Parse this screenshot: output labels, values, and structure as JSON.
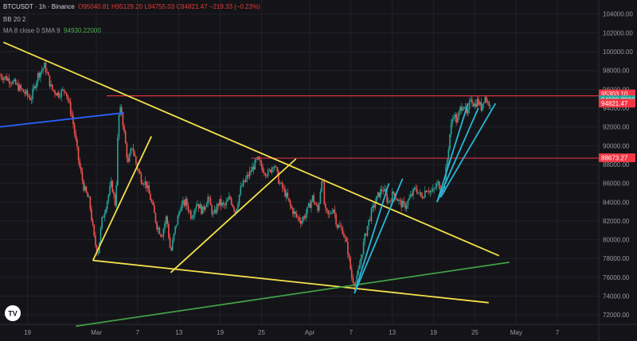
{
  "header": {
    "symbol": "BTCUSDT · 1h · Binance",
    "open": "O95040.81",
    "high": "H95129.20",
    "low": "L94755.03",
    "close": "C94821.47",
    "change": "−219.33 (−0.23%)",
    "indicator1": "BB 20 2",
    "indicator2": "MA 8 close 0 SMA 9",
    "indicator2_value": "94930.22000"
  },
  "colors": {
    "background": "#141418",
    "up": "#26a69a",
    "down": "#ef5350",
    "yellow": "#f5e14a",
    "red_line": "#f23645",
    "cyan": "#29b6d6",
    "blue": "#2962ff",
    "green": "#43a047"
  },
  "price_tags": [
    {
      "text": "95303.10",
      "value": 95303.1,
      "color": "#f23645"
    },
    {
      "text": "94930.2200",
      "value": 94930.22,
      "color": "#26a69a"
    },
    {
      "text": "94821.47",
      "value": 94821.47,
      "color": "#f23645"
    },
    {
      "text": "88673.27",
      "value": 88673.27,
      "color": "#f23645"
    }
  ],
  "chart_data": {
    "type": "line",
    "title": "BTCUSDT · 1h · Binance",
    "ylim": [
      71000,
      105500
    ],
    "y_ticks": [
      72000,
      74000,
      76000,
      78000,
      80000,
      82000,
      84000,
      86000,
      88000,
      90000,
      92000,
      94000,
      96000,
      98000,
      100000,
      102000,
      104000
    ],
    "y_tick_labels": [
      "72000.00",
      "74000.00",
      "76000.00",
      "78000.00",
      "80000.00",
      "82000.00",
      "84000.00",
      "86000.00",
      "88000.00",
      "90000.00",
      "92000.00",
      "94000.00",
      "96000.00",
      "98000.00",
      "100000.00",
      "102000.00",
      "104000.00"
    ],
    "x_ticks": [
      {
        "label": "19",
        "day": -10
      },
      {
        "label": "Mar",
        "day": 0
      },
      {
        "label": "7",
        "day": 6
      },
      {
        "label": "13",
        "day": 12
      },
      {
        "label": "19",
        "day": 18
      },
      {
        "label": "25",
        "day": 24
      },
      {
        "label": "Apr",
        "day": 31
      },
      {
        "label": "7",
        "day": 37
      },
      {
        "label": "13",
        "day": 43
      },
      {
        "label": "19",
        "day": 49
      },
      {
        "label": "25",
        "day": 55
      },
      {
        "label": "May",
        "day": 61
      },
      {
        "label": "7",
        "day": 67
      }
    ],
    "x_range_days": [
      -14,
      73
    ],
    "price_path": [
      [
        -14,
        97500
      ],
      [
        -12.5,
        97000
      ],
      [
        -11,
        96000
      ],
      [
        -9.5,
        95000
      ],
      [
        -8.5,
        97500
      ],
      [
        -7.5,
        98500
      ],
      [
        -6.5,
        96000
      ],
      [
        -5.5,
        95500
      ],
      [
        -4.5,
        96000
      ],
      [
        -3.5,
        93000
      ],
      [
        -2.5,
        88000
      ],
      [
        -1.8,
        85500
      ],
      [
        -1,
        84000
      ],
      [
        -0.3,
        80000
      ],
      [
        0.2,
        78500
      ],
      [
        0.8,
        82000
      ],
      [
        1.5,
        84000
      ],
      [
        2.2,
        86000
      ],
      [
        2.8,
        83500
      ],
      [
        3.2,
        93000
      ],
      [
        3.6,
        94000
      ],
      [
        4.1,
        91000
      ],
      [
        4.6,
        88000
      ],
      [
        5.2,
        90000
      ],
      [
        5.8,
        88000
      ],
      [
        6.5,
        86500
      ],
      [
        7.2,
        86000
      ],
      [
        8,
        84000
      ],
      [
        8.8,
        81500
      ],
      [
        9.5,
        80500
      ],
      [
        10.2,
        82500
      ],
      [
        10.8,
        78500
      ],
      [
        11.4,
        81000
      ],
      [
        12.2,
        83500
      ],
      [
        13,
        84000
      ],
      [
        13.8,
        82500
      ],
      [
        14.6,
        84000
      ],
      [
        15.4,
        83000
      ],
      [
        16.2,
        84500
      ],
      [
        17,
        82500
      ],
      [
        17.8,
        84000
      ],
      [
        18.6,
        83500
      ],
      [
        19.4,
        84500
      ],
      [
        20.2,
        83000
      ],
      [
        21,
        85500
      ],
      [
        21.8,
        86500
      ],
      [
        22.6,
        87500
      ],
      [
        23.4,
        88500
      ],
      [
        24.2,
        87500
      ],
      [
        25,
        87000
      ],
      [
        25.8,
        88200
      ],
      [
        26.6,
        86000
      ],
      [
        27.4,
        85000
      ],
      [
        28.2,
        83500
      ],
      [
        29,
        82500
      ],
      [
        29.8,
        82000
      ],
      [
        30.6,
        83000
      ],
      [
        31.4,
        84500
      ],
      [
        32.2,
        83000
      ],
      [
        32.8,
        87000
      ],
      [
        33.2,
        83000
      ],
      [
        33.8,
        82500
      ],
      [
        34.4,
        83500
      ],
      [
        35,
        81500
      ],
      [
        35.8,
        81000
      ],
      [
        36.5,
        79000
      ],
      [
        37.1,
        76000
      ],
      [
        37.7,
        75200
      ],
      [
        38.3,
        77500
      ],
      [
        38.8,
        79500
      ],
      [
        39.4,
        81500
      ],
      [
        40,
        83000
      ],
      [
        40.8,
        84500
      ],
      [
        41.6,
        85500
      ],
      [
        42.4,
        84000
      ],
      [
        43.2,
        85000
      ],
      [
        44,
        84000
      ],
      [
        44.8,
        83500
      ],
      [
        45.6,
        84500
      ],
      [
        46.4,
        85500
      ],
      [
        47.2,
        84500
      ],
      [
        48,
        85500
      ],
      [
        48.8,
        85000
      ],
      [
        49.6,
        86000
      ],
      [
        50.4,
        85200
      ],
      [
        50.9,
        88000
      ],
      [
        51.4,
        91500
      ],
      [
        51.9,
        93500
      ],
      [
        52.4,
        92500
      ],
      [
        52.9,
        94000
      ],
      [
        53.4,
        94500
      ],
      [
        53.9,
        93000
      ],
      [
        54.4,
        95200
      ],
      [
        54.9,
        94300
      ],
      [
        55.4,
        94800
      ],
      [
        55.9,
        94000
      ],
      [
        56.4,
        95300
      ],
      [
        56.9,
        94500
      ],
      [
        57.4,
        94800
      ]
    ],
    "lines": [
      {
        "name": "resistance-95303",
        "color": "#f23645",
        "points": [
          [
            1.5,
            95303.1
          ],
          [
            73,
            95303.1
          ]
        ]
      },
      {
        "name": "resistance-88673",
        "color": "#f23645",
        "points": [
          [
            22.5,
            88673.27
          ],
          [
            73,
            88673.27
          ]
        ]
      },
      {
        "name": "downtrend",
        "color": "#f5e14a",
        "points": [
          [
            -13.5,
            101000
          ],
          [
            58.5,
            78300
          ]
        ]
      },
      {
        "name": "lower-wedge",
        "color": "#f5e14a",
        "points": [
          [
            -0.5,
            77800
          ],
          [
            57,
            73300
          ]
        ]
      },
      {
        "name": "channel-1",
        "color": "#f5e14a",
        "points": [
          [
            -0.5,
            77800
          ],
          [
            8,
            91000
          ]
        ]
      },
      {
        "name": "channel-2",
        "color": "#f5e14a",
        "points": [
          [
            10.8,
            76500
          ],
          [
            29,
            88600
          ]
        ]
      },
      {
        "name": "blue-trend",
        "color": "#2962ff",
        "points": [
          [
            -14,
            92000
          ],
          [
            4,
            93500
          ]
        ]
      },
      {
        "name": "green-trend",
        "color": "#43a047",
        "points": [
          [
            -3,
            70800
          ],
          [
            60,
            77600
          ]
        ]
      },
      {
        "name": "cyan-1",
        "color": "#29b6d6",
        "points": [
          [
            37.5,
            74300
          ],
          [
            42.5,
            86000
          ]
        ]
      },
      {
        "name": "cyan-2",
        "color": "#29b6d6",
        "points": [
          [
            37.5,
            74300
          ],
          [
            44.5,
            86500
          ]
        ]
      },
      {
        "name": "cyan-3",
        "color": "#29b6d6",
        "points": [
          [
            49.5,
            84000
          ],
          [
            54,
            94500
          ]
        ]
      },
      {
        "name": "cyan-4",
        "color": "#29b6d6",
        "points": [
          [
            49.5,
            84000
          ],
          [
            55.5,
            94000
          ]
        ]
      },
      {
        "name": "cyan-5",
        "color": "#29b6d6",
        "points": [
          [
            50,
            84500
          ],
          [
            58,
            94500
          ]
        ]
      }
    ],
    "grid": true,
    "legend": "top-left"
  },
  "logo": {
    "text": "TV"
  }
}
